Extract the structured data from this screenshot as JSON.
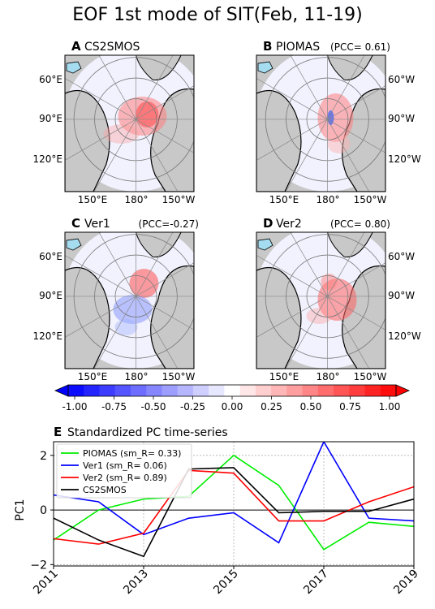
{
  "figure": {
    "title": "EOF 1st mode of SIT(Feb, 11-19)",
    "land_color": "#c8c8c8",
    "ocean_color": "#f1f2fd",
    "coast_color": "#000000",
    "water_color": "#a6dcef"
  },
  "maps": [
    {
      "letter": "A",
      "name": "CS2SMOS",
      "pcc": "",
      "side": "left",
      "left_labels": [
        "60°E",
        "90°E",
        "120°E"
      ],
      "right_labels": [],
      "bottom_labels": [
        "150°E",
        "180°",
        "150°W"
      ]
    },
    {
      "letter": "B",
      "name": "PIOMAS",
      "pcc": "(PCC= 0.61)",
      "side": "right",
      "left_labels": [],
      "right_labels": [
        "60°W",
        "90°W",
        "120°W"
      ],
      "bottom_labels": [
        "150°E",
        "180°",
        "150°W"
      ]
    },
    {
      "letter": "C",
      "name": "Ver1",
      "pcc": "(PCC=-0.27)",
      "side": "left",
      "left_labels": [
        "60°E",
        "90°E",
        "120°E"
      ],
      "right_labels": [],
      "bottom_labels": [
        "150°E",
        "180°",
        "150°W"
      ]
    },
    {
      "letter": "D",
      "name": "Ver2",
      "pcc": "(PCC= 0.80)",
      "side": "right",
      "left_labels": [],
      "right_labels": [
        "60°W",
        "90°W",
        "120°W"
      ],
      "bottom_labels": [
        "150°E",
        "180°",
        "150°W"
      ]
    }
  ],
  "colorbar": {
    "min": -1.0,
    "max": 1.0,
    "levels": 21,
    "ticks": [
      "-1.00",
      "-0.75",
      "-0.50",
      "-0.25",
      "0.00",
      "0.25",
      "0.50",
      "0.75",
      "1.00"
    ],
    "low_color": "#0000ff",
    "mid_color": "#ffffff",
    "high_color": "#ff0000"
  },
  "chart_data": {
    "type": "line",
    "panel_letter": "E",
    "title": "Standardized PC time-series",
    "xlabel": "",
    "ylabel": "PC1",
    "x": [
      2011,
      2012,
      2013,
      2014,
      2015,
      2016,
      2017,
      2018,
      2019
    ],
    "x_ticks": [
      "2011",
      "2013",
      "2015",
      "2017",
      "2019"
    ],
    "y_ticks": [
      "2",
      "0",
      "−2"
    ],
    "y_tick_values": [
      2,
      0,
      -2
    ],
    "xlim": [
      2011,
      2019
    ],
    "ylim": [
      -2.05,
      2.5
    ],
    "grid": true,
    "zero_line": true,
    "legend_position": "upper-left",
    "series": [
      {
        "name": "PIOMAS (sm_R= 0.33)",
        "color": "#00ee00",
        "values": [
          -1.1,
          0.0,
          0.4,
          0.5,
          2.0,
          0.9,
          -1.45,
          -0.45,
          -0.6
        ]
      },
      {
        "name": "Ver1 (sm_R= 0.06)",
        "color": "#0000ff",
        "values": [
          0.55,
          0.3,
          -0.9,
          -0.3,
          -0.1,
          -1.2,
          2.5,
          -0.3,
          -0.4
        ]
      },
      {
        "name": "Ver2 (sm_R= 0.89)",
        "color": "#ff0000",
        "values": [
          -1.05,
          -1.25,
          -0.85,
          1.45,
          1.35,
          -0.4,
          -0.4,
          0.3,
          0.85
        ]
      },
      {
        "name": "CS2SMOS",
        "color": "#000000",
        "values": [
          -0.3,
          -1.1,
          -1.7,
          1.5,
          1.55,
          -0.1,
          -0.05,
          -0.05,
          0.4
        ]
      }
    ]
  }
}
